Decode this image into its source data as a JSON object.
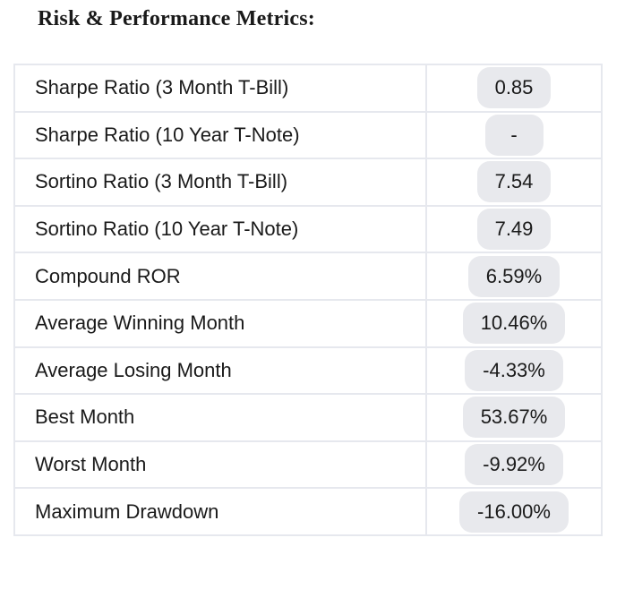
{
  "title": "Risk & Performance Metrics:",
  "metrics": [
    {
      "label": "Sharpe Ratio (3 Month T-Bill)",
      "value": "0.85"
    },
    {
      "label": "Sharpe Ratio (10 Year T-Note)",
      "value": "-"
    },
    {
      "label": "Sortino Ratio (3 Month T-Bill)",
      "value": "7.54"
    },
    {
      "label": "Sortino Ratio (10 Year T-Note)",
      "value": "7.49"
    },
    {
      "label": "Compound ROR",
      "value": "6.59%"
    },
    {
      "label": "Average Winning Month",
      "value": "10.46%"
    },
    {
      "label": "Average Losing Month",
      "value": "-4.33%"
    },
    {
      "label": "Best Month",
      "value": "53.67%"
    },
    {
      "label": "Worst Month",
      "value": "-9.92%"
    },
    {
      "label": "Maximum Drawdown",
      "value": "-16.00%"
    }
  ]
}
